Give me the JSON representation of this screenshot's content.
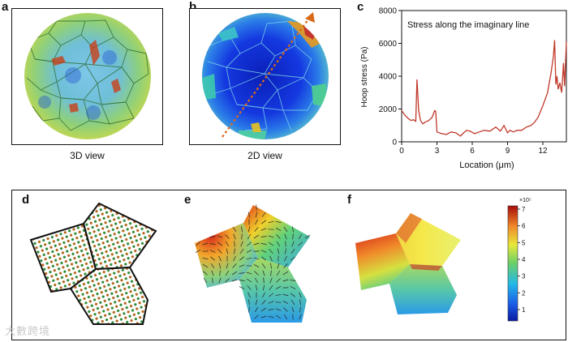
{
  "panels": {
    "a": {
      "label": "a",
      "caption": "3D view"
    },
    "b": {
      "label": "b",
      "caption": "2D view"
    },
    "c": {
      "label": "c"
    },
    "d": {
      "label": "d"
    },
    "e": {
      "label": "e"
    },
    "f": {
      "label": "f"
    }
  },
  "colorbar": {
    "exponent": "×10⁵",
    "ticks": [
      "7",
      "6",
      "5",
      "4",
      "3",
      "2",
      "1"
    ]
  },
  "watermark": "大數跨境",
  "colors": {
    "line": "#c0392b",
    "blue": "#1a35d6",
    "red": "#d42a1a"
  },
  "chart_data": {
    "type": "line",
    "title": "Stress along the imaginary line",
    "xlabel": "Location (μm)",
    "ylabel": "Hoop stress (Pa)",
    "xlim": [
      0,
      14
    ],
    "ylim": [
      0,
      8000
    ],
    "xticks": [
      "0",
      "3",
      "6",
      "9",
      "12"
    ],
    "yticks": [
      "0",
      "2000",
      "4000",
      "6000",
      "8000"
    ],
    "series": [
      {
        "name": "Hoop stress",
        "x": [
          0,
          0.3,
          0.6,
          0.8,
          1.0,
          1.2,
          1.3,
          1.45,
          1.6,
          1.8,
          2.0,
          2.3,
          2.6,
          2.8,
          2.9,
          3.0,
          3.4,
          3.8,
          4.2,
          4.6,
          5.0,
          5.2,
          5.5,
          5.8,
          6.2,
          6.6,
          7.0,
          7.5,
          8.0,
          8.4,
          8.7,
          9.0,
          9.2,
          9.5,
          9.8,
          10.2,
          10.6,
          11.0,
          11.3,
          11.6,
          12.0,
          12.4,
          12.7,
          12.9,
          13.0,
          13.1,
          13.2,
          13.3,
          13.45,
          13.6,
          13.75,
          13.85,
          14.0
        ],
        "values": [
          1900,
          1600,
          1400,
          1300,
          1350,
          1250,
          3800,
          1900,
          1300,
          1100,
          1200,
          1300,
          1500,
          1900,
          1850,
          600,
          500,
          450,
          600,
          550,
          350,
          500,
          700,
          650,
          500,
          600,
          700,
          650,
          900,
          650,
          1000,
          550,
          700,
          600,
          700,
          700,
          900,
          1000,
          1200,
          1500,
          2200,
          3000,
          4200,
          5200,
          6200,
          3500,
          4000,
          3200,
          3600,
          3000,
          4800,
          3400,
          6100
        ]
      }
    ]
  }
}
